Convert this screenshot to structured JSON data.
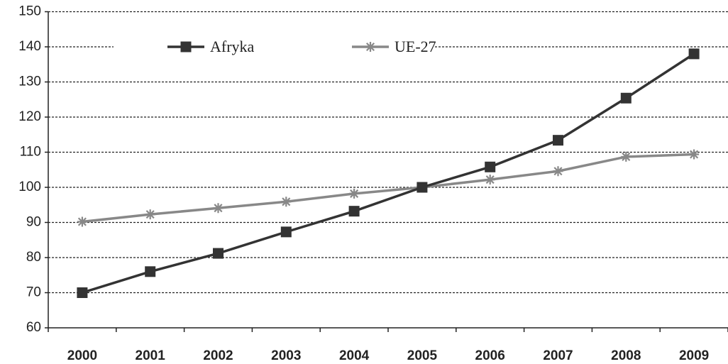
{
  "chart_data": {
    "type": "line",
    "categories": [
      "2000",
      "2001",
      "2002",
      "2003",
      "2004",
      "2005",
      "2006",
      "2007",
      "2008",
      "2009"
    ],
    "series": [
      {
        "name": "Afryka",
        "color": "#333333",
        "marker": "square",
        "values": [
          70,
          76,
          81.2,
          87.3,
          93.2,
          100,
          105.8,
          113.4,
          125.4,
          138
        ]
      },
      {
        "name": "UE-27",
        "color": "#888888",
        "marker": "star",
        "values": [
          90.2,
          92.3,
          94.1,
          95.9,
          98.2,
          100,
          102.2,
          104.6,
          108.7,
          109.4
        ]
      }
    ],
    "ylim": [
      60,
      150
    ],
    "yticks": [
      60,
      70,
      80,
      90,
      100,
      110,
      120,
      130,
      140,
      150
    ],
    "grid": true,
    "legend": "top"
  }
}
